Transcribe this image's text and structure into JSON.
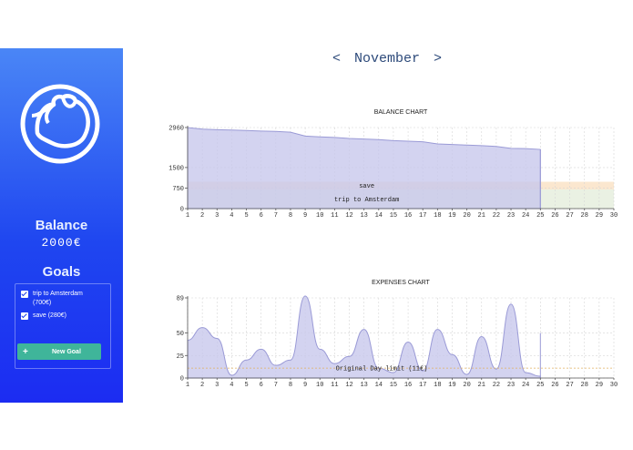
{
  "sidebar": {
    "balance_title": "Balance",
    "balance_value": "2000€",
    "goals_title": "Goals",
    "goals": [
      {
        "label": "trip to Amsterdam",
        "sublabel": "(700€)",
        "checked": true
      },
      {
        "label": "save (280€)",
        "sublabel": "",
        "checked": true
      }
    ],
    "new_goal_label": "New Goal",
    "new_goal_icon": "+"
  },
  "header": {
    "prev": "<",
    "month": "November",
    "next": ">"
  },
  "chart_data": [
    {
      "type": "area",
      "title": "BALANCE CHART",
      "x": [
        1,
        2,
        3,
        4,
        5,
        6,
        7,
        8,
        9,
        10,
        11,
        12,
        13,
        14,
        15,
        16,
        17,
        18,
        19,
        20,
        21,
        22,
        23,
        24,
        25
      ],
      "values": [
        2960,
        2900,
        2880,
        2870,
        2850,
        2830,
        2820,
        2790,
        2650,
        2620,
        2600,
        2560,
        2540,
        2520,
        2480,
        2460,
        2440,
        2360,
        2340,
        2320,
        2300,
        2270,
        2200,
        2190,
        2160
      ],
      "xlim": [
        1,
        30
      ],
      "ylim": [
        0,
        2960
      ],
      "ytick_values": [
        0,
        750,
        1500,
        2960
      ],
      "ytick_labels": [
        "0",
        "750",
        "1500",
        "2960"
      ],
      "xtick_labels": [
        "1",
        "2",
        "3",
        "4",
        "5",
        "6",
        "7",
        "8",
        "9",
        "10",
        "11",
        "12",
        "13",
        "14",
        "15",
        "16",
        "17",
        "18",
        "19",
        "20",
        "21",
        "22",
        "23",
        "24",
        "25",
        "26",
        "27",
        "28",
        "29",
        "30"
      ],
      "bands": [
        {
          "label": "save",
          "from": 700,
          "to": 980,
          "color": "#f7d3a8"
        },
        {
          "label": "trip to Amsterdam",
          "from": 0,
          "to": 700,
          "color": "#d9e6cc"
        }
      ],
      "grid": true
    },
    {
      "type": "area",
      "title": "EXPENSES CHART",
      "x": [
        1,
        2,
        3,
        4,
        5,
        6,
        7,
        8,
        9,
        10,
        11,
        12,
        13,
        14,
        15,
        16,
        17,
        18,
        19,
        20,
        21,
        22,
        23,
        24,
        25
      ],
      "values": [
        42,
        56,
        44,
        3,
        20,
        32,
        14,
        20,
        91,
        32,
        16,
        24,
        54,
        11,
        6,
        40,
        8,
        54,
        26,
        4,
        46,
        10,
        82,
        6,
        2
      ],
      "xlim": [
        1,
        30
      ],
      "ylim": [
        0,
        89
      ],
      "ytick_values": [
        0,
        25,
        50,
        89
      ],
      "ytick_labels": [
        "0",
        "25",
        "50",
        "89"
      ],
      "xtick_labels": [
        "1",
        "2",
        "3",
        "4",
        "5",
        "6",
        "7",
        "8",
        "9",
        "10",
        "11",
        "12",
        "13",
        "14",
        "15",
        "16",
        "17",
        "18",
        "19",
        "20",
        "21",
        "22",
        "23",
        "24",
        "25",
        "26",
        "27",
        "28",
        "29",
        "30"
      ],
      "limit_line": {
        "value": 11,
        "label": "Original Day limit (11€)"
      },
      "grid": true
    }
  ],
  "colors": {
    "sidebar_top": "#4a86f6",
    "sidebar_bottom": "#1c2cf2",
    "area_fill": "#c6c7ec",
    "area_stroke": "#9a9ad6",
    "accent_button": "#3fb59a",
    "month_text": "#2d4a7a"
  }
}
